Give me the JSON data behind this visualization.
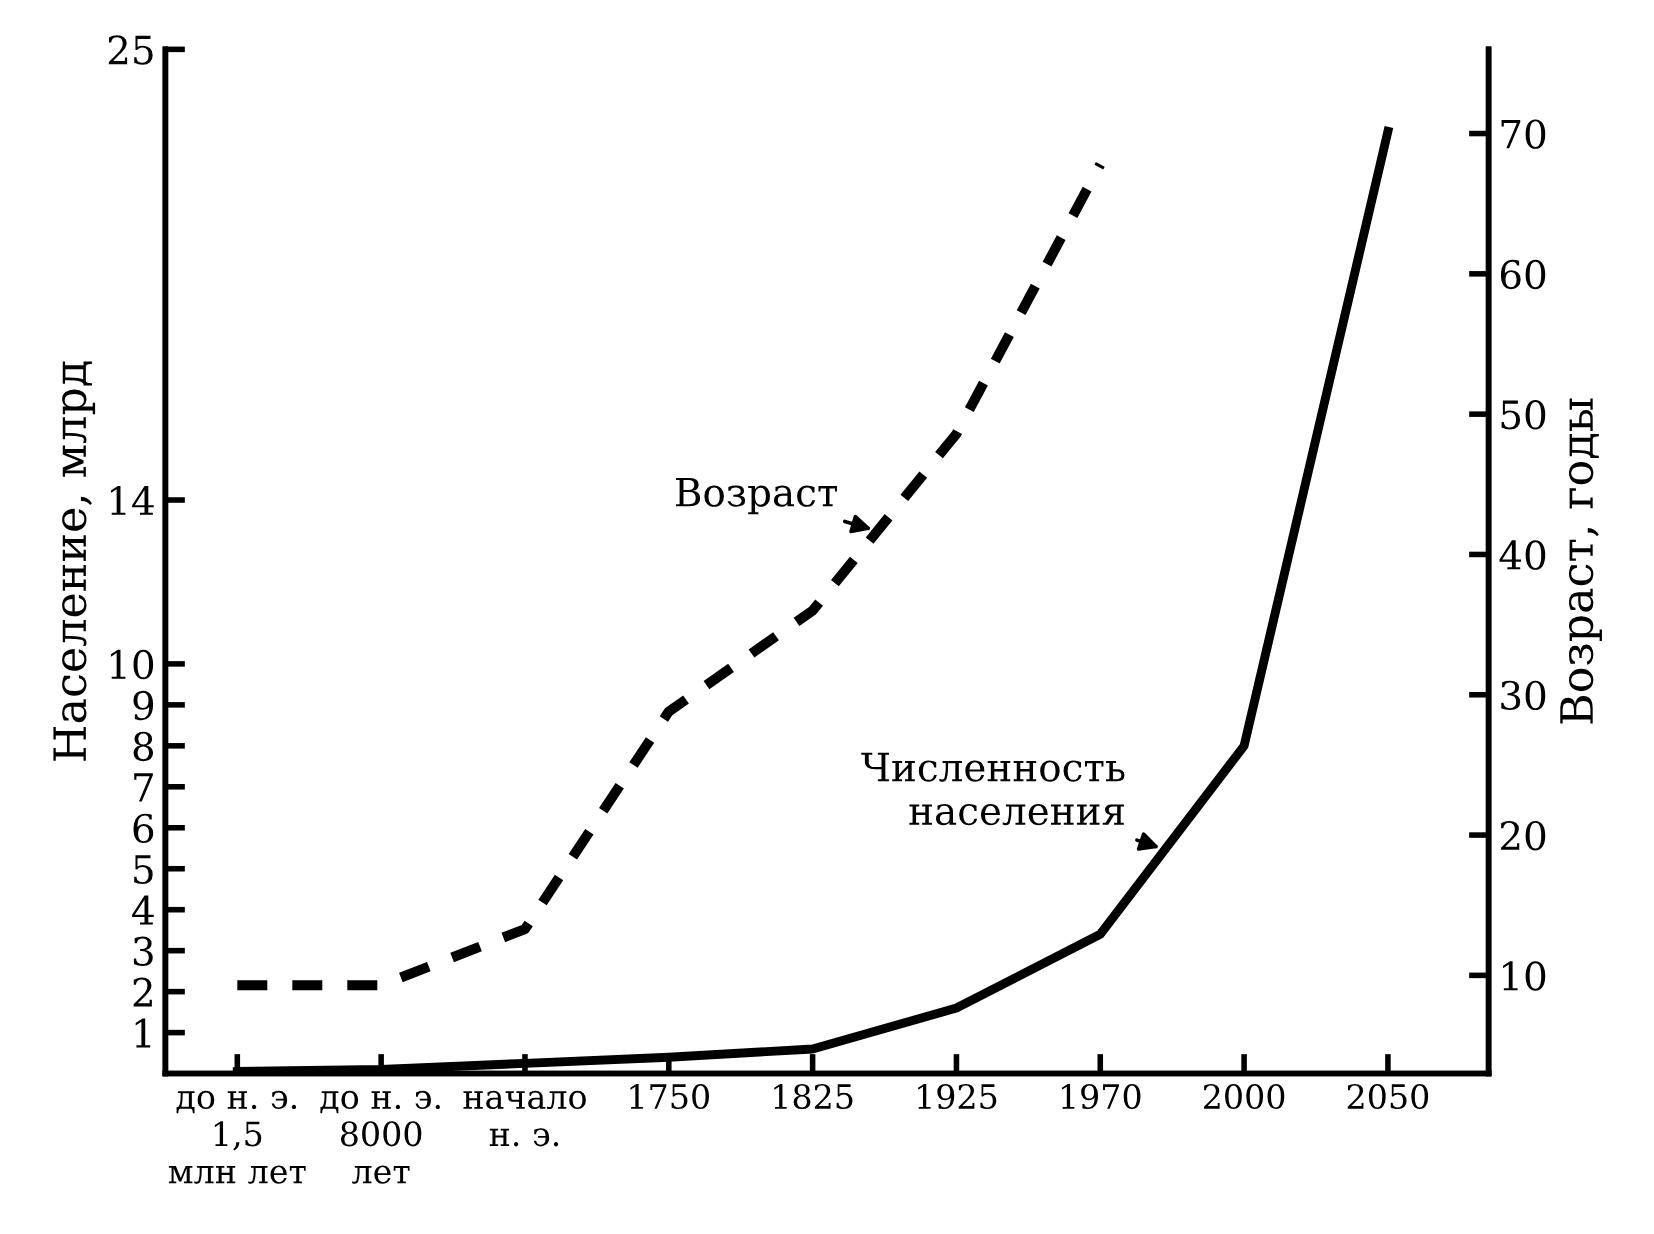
{
  "chart_data": {
    "type": "line",
    "categories": [
      "до н. э.\n1,5\nмлн лет",
      "до н. э.\n8000\nлет",
      "начало\nн. э.",
      "1750",
      "1825",
      "1925",
      "1970",
      "2000",
      "2050"
    ],
    "series": [
      {
        "name": "Численность населения",
        "color": "#000000",
        "axis": "y",
        "line_style": "solid",
        "values": [
          0.05,
          0.1,
          0.25,
          0.4,
          0.6,
          1.6,
          3.4,
          8,
          23
        ]
      },
      {
        "name": "Возраст",
        "color": "#000000",
        "axis": "y2",
        "line_style": "dashed",
        "values": [
          9.3,
          9.3,
          13.3,
          28.8,
          36,
          48.6,
          67.8,
          null,
          null
        ]
      }
    ],
    "ylabel": "Население, млрд",
    "y2label": "Возраст, годы",
    "ylim": [
      0,
      25
    ],
    "yticks": [
      1,
      2,
      3,
      4,
      5,
      6,
      7,
      8,
      9,
      10,
      14,
      25
    ],
    "y2lim": [
      3,
      76
    ],
    "y2ticks": [
      10,
      20,
      30,
      40,
      50,
      60,
      70
    ],
    "grid": false,
    "legend": false,
    "marker": "none"
  }
}
